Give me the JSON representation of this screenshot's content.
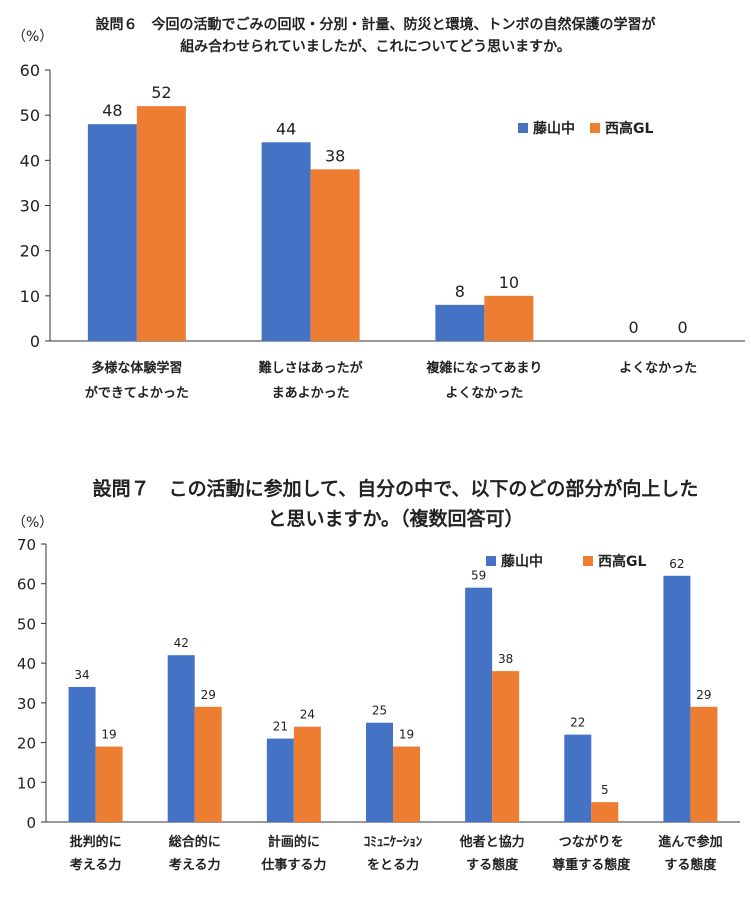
{
  "chart_data": [
    {
      "type": "bar",
      "title_lines": [
        "設問６　今回の活動でごみの回収・分別・計量、防災と環境、トンボの自然保護の学習が",
        "組み合わせられていましたが、これについてどう思いますか。"
      ],
      "unit_label": "（%）",
      "categories": [
        [
          "多様な体験学習",
          "ができてよかった"
        ],
        [
          "難しさはあったが",
          "まあよかった"
        ],
        [
          "複雑になってあまり",
          "よくなかった"
        ],
        [
          "よくなかった"
        ]
      ],
      "series": [
        {
          "name": "藤山中",
          "color": "#4472C4",
          "values": [
            48,
            44,
            8,
            0
          ],
          "labels": [
            "48",
            "44",
            "8",
            "0"
          ]
        },
        {
          "name": "西高GL",
          "color": "#ED7D31",
          "values": [
            52,
            38,
            10,
            0
          ],
          "labels": [
            "52",
            "38",
            "10",
            "0"
          ]
        }
      ],
      "ylim": [
        0,
        60
      ],
      "yticks": [
        0,
        10,
        20,
        30,
        40,
        50,
        60
      ],
      "grid": false,
      "legend": "top-right"
    },
    {
      "type": "bar",
      "title_lines": [
        "設問７　この活動に参加して、自分の中で、以下のどの部分が向上した",
        "と思いますか。（複数回答可）"
      ],
      "unit_label": "（%）",
      "categories": [
        [
          "批判的に",
          "考える力"
        ],
        [
          "総合的に",
          "考える力"
        ],
        [
          "計画的に",
          "仕事する力"
        ],
        [
          "ｺﾐｭﾆｹｰｼｮﾝ",
          "をとる力"
        ],
        [
          "他者と協力",
          "する態度"
        ],
        [
          "つながりを",
          "尊重する態度"
        ],
        [
          "進んで参加",
          "する態度"
        ]
      ],
      "series": [
        {
          "name": "藤山中",
          "color": "#4472C4",
          "values": [
            34,
            42,
            21,
            25,
            59,
            22,
            62
          ],
          "labels": [
            "34",
            "42",
            "21",
            "25",
            "59",
            "22",
            "62"
          ]
        },
        {
          "name": "西高GL",
          "color": "#ED7D31",
          "values": [
            19,
            29,
            24,
            19,
            38,
            5,
            29
          ],
          "labels": [
            "19",
            "29",
            "24",
            "19",
            "38",
            "5",
            "29"
          ]
        }
      ],
      "ylim": [
        0,
        70
      ],
      "yticks": [
        0,
        10,
        20,
        30,
        40,
        50,
        60,
        70
      ],
      "grid": false,
      "legend": "top-right"
    }
  ]
}
